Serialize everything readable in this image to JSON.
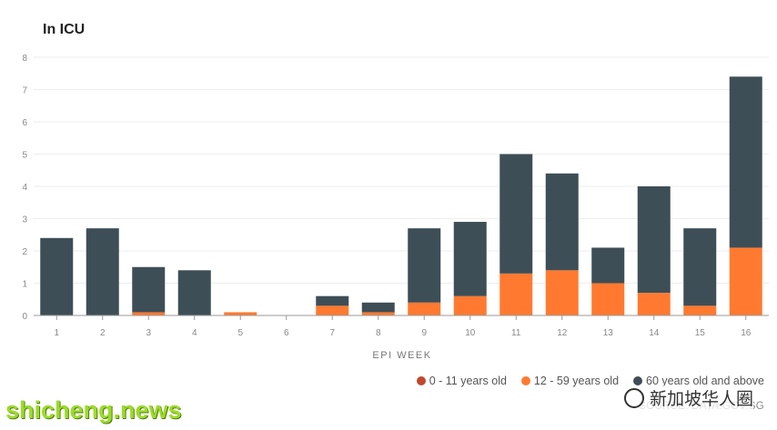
{
  "chart_data": {
    "type": "bar",
    "stacked": true,
    "title": "In ICU",
    "xlabel": "EPI WEEK",
    "ylabel": "",
    "ylim": [
      0,
      8
    ],
    "yticks": [
      0,
      1,
      2,
      3,
      4,
      5,
      6,
      7,
      8
    ],
    "categories": [
      "1",
      "2",
      "3",
      "4",
      "5",
      "6",
      "7",
      "8",
      "9",
      "10",
      "11",
      "12",
      "13",
      "14",
      "15",
      "16"
    ],
    "series": [
      {
        "name": "0 - 11 years old",
        "color": "#c0492a",
        "values": [
          0,
          0,
          0,
          0,
          0,
          0,
          0,
          0,
          0,
          0,
          0,
          0,
          0,
          0,
          0,
          0
        ]
      },
      {
        "name": "12 - 59 years old",
        "color": "#ff7a30",
        "values": [
          0,
          0,
          0.1,
          0,
          0.1,
          0,
          0.3,
          0.1,
          0.4,
          0.6,
          1.3,
          1.4,
          1.0,
          0.7,
          0.3,
          2.1
        ]
      },
      {
        "name": "60 years old and above",
        "color": "#3e4e56",
        "values": [
          2.4,
          2.7,
          1.4,
          1.4,
          0,
          0,
          0.3,
          0.3,
          2.3,
          2.3,
          3.7,
          3.0,
          1.1,
          3.3,
          2.4,
          5.3
        ]
      }
    ],
    "legend_position": "bottom-right",
    "grid": true
  },
  "legend_display": [
    "0 - 11 years old",
    "12 - 59 years old",
    "60 years old and above"
  ],
  "source": "SOURCE: DATA.GOV.SG",
  "watermark_left": "shicheng.news",
  "watermark_right": "新加坡华人圈"
}
